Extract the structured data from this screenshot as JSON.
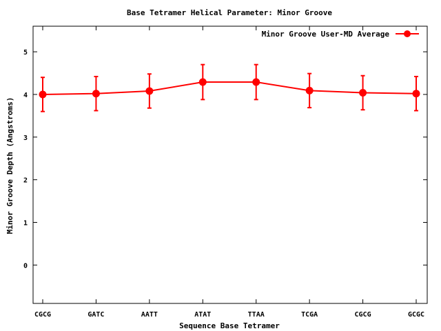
{
  "chart_data": {
    "type": "line",
    "title": "Base Tetramer Helical Parameter: Minor Groove",
    "xlabel": "Sequence Base Tetramer",
    "ylabel": "Minor Groove Depth (Angstroms)",
    "categories": [
      "CGCG",
      "GATC",
      "AATT",
      "ATAT",
      "TTAA",
      "TCGA",
      "CGCG",
      "GCGC"
    ],
    "ylim": [
      -0.9,
      5.6
    ],
    "yticks": [
      0,
      1,
      2,
      3,
      4,
      5
    ],
    "grid": false,
    "legend_position": "top-right",
    "series": [
      {
        "name": "Minor Groove User-MD Average",
        "color": "#ff0000",
        "values": [
          4.0,
          4.02,
          4.08,
          4.29,
          4.29,
          4.09,
          4.04,
          4.02
        ],
        "error": [
          0.4,
          0.4,
          0.4,
          0.41,
          0.41,
          0.4,
          0.4,
          0.4
        ]
      }
    ]
  }
}
